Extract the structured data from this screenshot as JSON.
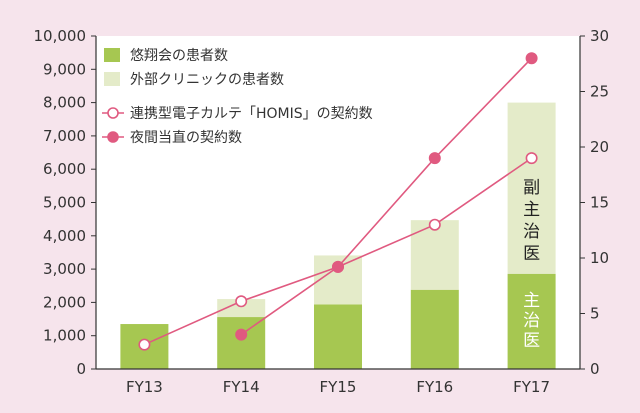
{
  "chart_data": {
    "type": "bar",
    "categories": [
      "FY13",
      "FY14",
      "FY15",
      "FY16",
      "FY17"
    ],
    "bar_series": [
      {
        "name": "悠翔会の患者数",
        "values": [
          1350,
          1560,
          1940,
          2380,
          2860
        ],
        "color": "#a6c751"
      },
      {
        "name": "外部クリニックの患者数",
        "values": [
          0,
          540,
          1470,
          2090,
          5140
        ],
        "color": "#e4ebc9"
      }
    ],
    "line_series": [
      {
        "name": "連携型電子カルテ「HOMIS」の契約数",
        "values": [
          2.2,
          6.1,
          9.2,
          13.0,
          19.0
        ],
        "color": "#e05a80",
        "marker": "hollow"
      },
      {
        "name": "夜間当直の契約数",
        "values": [
          null,
          3.1,
          9.2,
          19.0,
          28.0
        ],
        "color": "#e05a80",
        "marker": "filled"
      }
    ],
    "y_left": {
      "min": 0,
      "max": 10000,
      "ticks": [
        "0",
        "1,000",
        "2,000",
        "3,000",
        "4,000",
        "5,000",
        "6,000",
        "7,000",
        "8,000",
        "9,000",
        "10,000"
      ]
    },
    "y_right": {
      "min": 0,
      "max": 30,
      "ticks": [
        "0",
        "5",
        "10",
        "15",
        "20",
        "25",
        "30"
      ]
    },
    "annotations": {
      "upper": "副主治医",
      "lower": "主治医"
    },
    "legend_position": "top-left",
    "grid": false
  }
}
